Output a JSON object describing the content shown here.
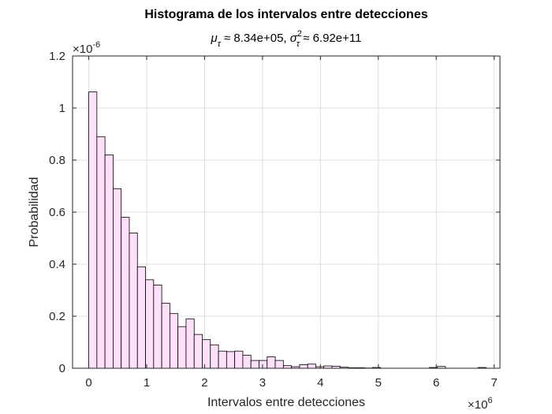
{
  "chart_data": {
    "type": "bar",
    "title": "Histograma de los intervalos entre detecciones",
    "subtitle": {
      "mu": "μ",
      "mu_sub": "τ",
      "mu_text": " ≈ 8.34e+05, ",
      "sigma": "σ",
      "sigma_sup": "2",
      "sigma_sub": "τ",
      "sigma_text": " ≈ 6.92e+11"
    },
    "xlabel": "Intervalos entre detecciones",
    "ylabel": "Probabilidad",
    "x_exponent": {
      "base": "×10",
      "power": "6"
    },
    "y_exponent": {
      "base": "×10",
      "power": "-6"
    },
    "xlim": [
      -0.28,
      7.1
    ],
    "ylim": [
      0,
      1.2
    ],
    "x_ticks": [
      0,
      1,
      2,
      3,
      4,
      5,
      6,
      7
    ],
    "x_tick_labels": [
      "0",
      "1",
      "2",
      "3",
      "4",
      "5",
      "6",
      "7"
    ],
    "y_ticks": [
      0,
      0.2,
      0.4,
      0.6,
      0.8,
      1,
      1.2
    ],
    "y_tick_labels": [
      "0",
      "0.2",
      "0.4",
      "0.6",
      "0.8",
      "1",
      "1.2"
    ],
    "grid": true,
    "bin_width": 0.14,
    "bin_start": 0,
    "values": [
      1.062,
      0.89,
      0.82,
      0.69,
      0.58,
      0.52,
      0.39,
      0.34,
      0.32,
      0.25,
      0.21,
      0.16,
      0.19,
      0.13,
      0.11,
      0.09,
      0.066,
      0.064,
      0.066,
      0.05,
      0.03,
      0.03,
      0.044,
      0.03,
      0.01,
      0.006,
      0.014,
      0.016,
      0.006,
      0.009,
      0.008,
      0.004,
      0.002,
      0.002,
      0.001,
      0.003,
      0,
      0,
      0,
      0,
      0,
      0,
      0.003,
      0.007,
      0,
      0,
      0,
      0,
      0.003
    ]
  }
}
